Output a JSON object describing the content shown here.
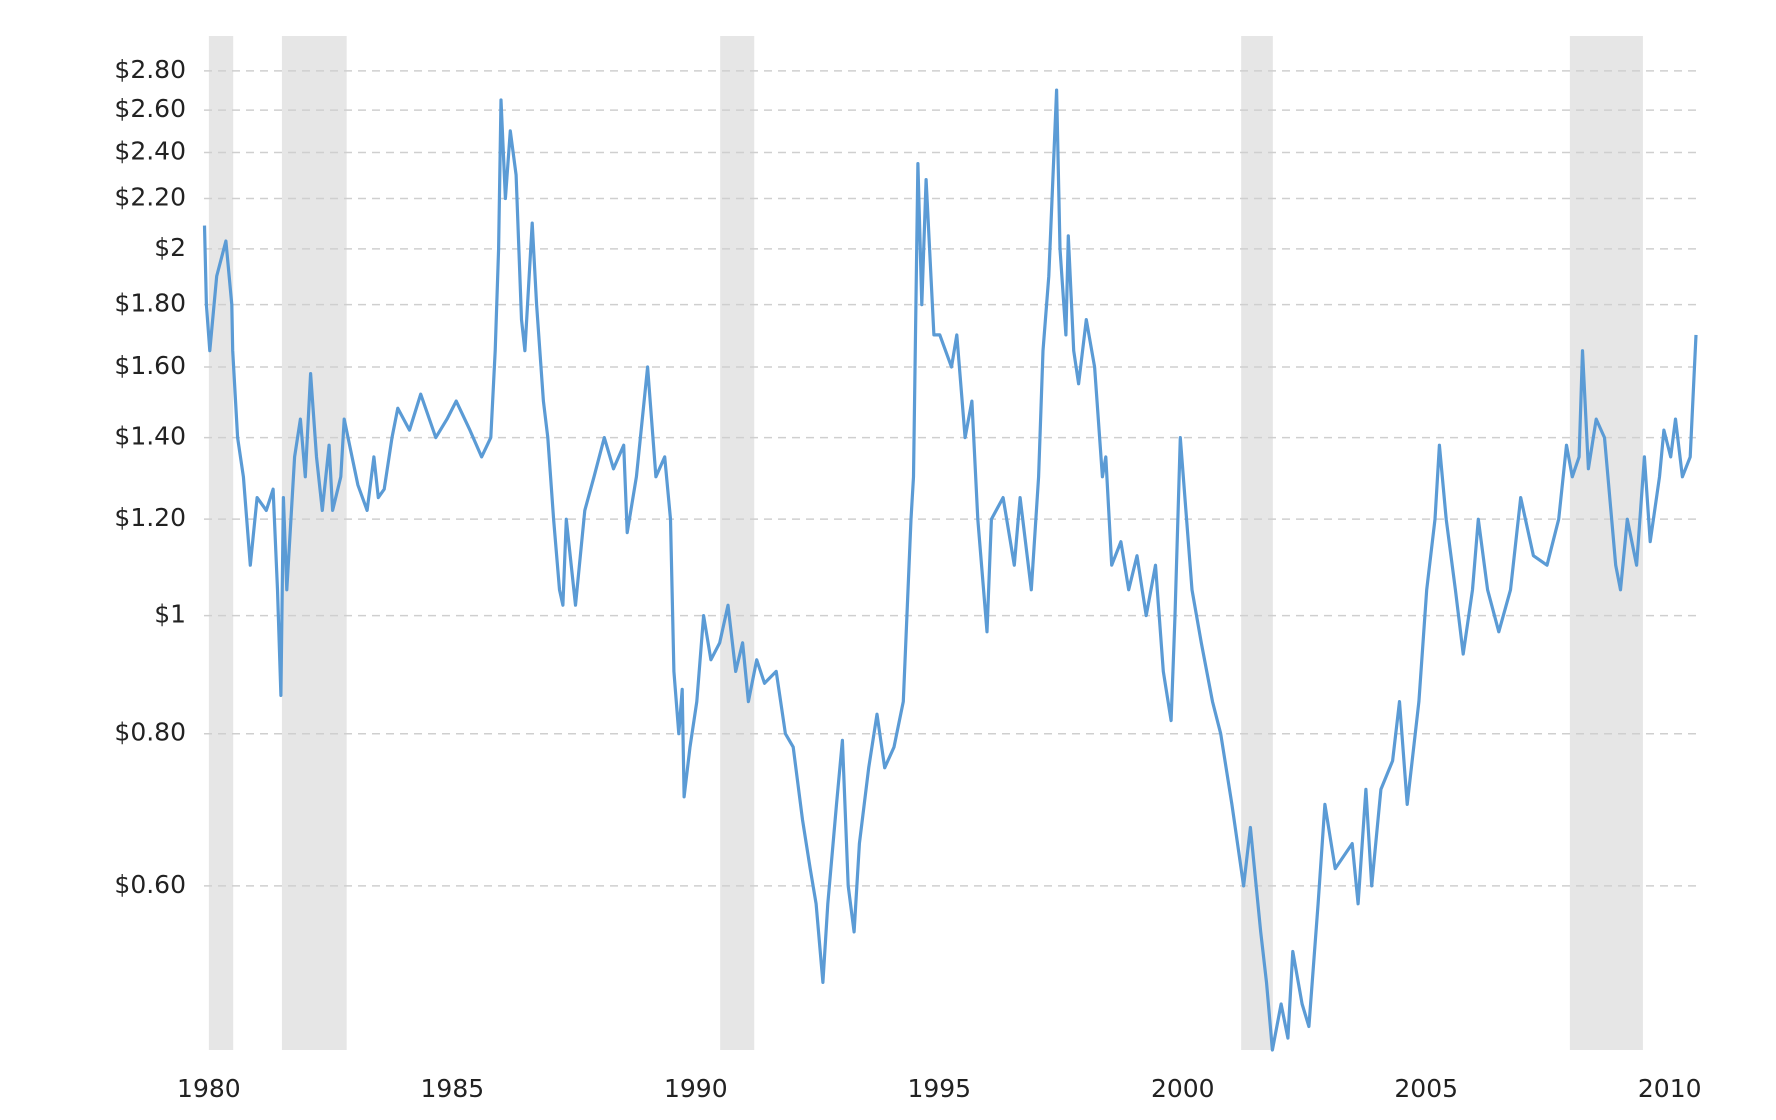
{
  "chart_data": {
    "type": "line",
    "log_scale": true,
    "grid": true,
    "xlim": [
      1979.9,
      2010.54
    ],
    "xticks": [
      1980,
      1985,
      1990,
      1995,
      2000,
      2005,
      2010
    ],
    "ylim": [
      0.44,
      2.88
    ],
    "yticks": [
      {
        "value": 0.6,
        "label": "$0.60"
      },
      {
        "value": 0.8,
        "label": "$0.80"
      },
      {
        "value": 1,
        "label": "$1"
      },
      {
        "value": 1.2,
        "label": "$1.20"
      },
      {
        "value": 1.4,
        "label": "$1.40"
      },
      {
        "value": 1.6,
        "label": "$1.60"
      },
      {
        "value": 1.8,
        "label": "$1.80"
      },
      {
        "value": 2,
        "label": "$2"
      },
      {
        "value": 2.2,
        "label": "$2.20"
      },
      {
        "value": 2.4,
        "label": "$2.40"
      },
      {
        "value": 2.6,
        "label": "$2.60"
      },
      {
        "value": 2.8,
        "label": "$2.80"
      }
    ],
    "recession_color": "#e6e6e6",
    "recessions": [
      [
        1980.0,
        1980.5
      ],
      [
        1981.5,
        1982.83
      ],
      [
        1990.5,
        1991.2
      ],
      [
        2001.2,
        2001.85
      ],
      [
        2007.95,
        2009.45
      ]
    ],
    "x": [
      1979.91,
      1979.95,
      1980.02,
      1980.16,
      1980.35,
      1980.47,
      1980.49,
      1980.59,
      1980.71,
      1980.85,
      1980.99,
      1981.18,
      1981.32,
      1981.41,
      1981.48,
      1981.53,
      1981.6,
      1981.76,
      1981.88,
      1981.98,
      1982.09,
      1982.21,
      1982.33,
      1982.47,
      1982.54,
      1982.71,
      1982.78,
      1982.89,
      1983.06,
      1983.25,
      1983.39,
      1983.48,
      1983.6,
      1983.76,
      1983.88,
      1984.12,
      1984.35,
      1984.66,
      1984.89,
      1985.08,
      1985.36,
      1985.6,
      1985.79,
      1985.88,
      1985.95,
      1986.0,
      1986.09,
      1986.19,
      1986.31,
      1986.42,
      1986.49,
      1986.64,
      1986.73,
      1986.87,
      1986.96,
      1987.08,
      1987.2,
      1987.27,
      1987.34,
      1987.53,
      1987.72,
      1987.91,
      1988.12,
      1988.31,
      1988.52,
      1988.59,
      1988.78,
      1989.01,
      1989.18,
      1989.36,
      1989.48,
      1989.55,
      1989.65,
      1989.72,
      1989.76,
      1989.88,
      1990.02,
      1990.16,
      1990.31,
      1990.49,
      1990.66,
      1990.82,
      1990.96,
      1991.08,
      1991.25,
      1991.41,
      1991.65,
      1991.84,
      1992.0,
      1992.19,
      1992.35,
      1992.47,
      1992.61,
      1992.71,
      1992.89,
      1993.01,
      1993.13,
      1993.25,
      1993.36,
      1993.55,
      1993.72,
      1993.88,
      1994.07,
      1994.26,
      1994.42,
      1994.47,
      1994.56,
      1994.64,
      1994.73,
      1994.89,
      1995.01,
      1995.25,
      1995.36,
      1995.53,
      1995.67,
      1995.79,
      1995.98,
      1996.07,
      1996.31,
      1996.54,
      1996.66,
      1996.89,
      1997.04,
      1997.13,
      1997.25,
      1997.41,
      1997.48,
      1997.6,
      1997.65,
      1997.76,
      1997.86,
      1998.02,
      1998.19,
      1998.35,
      1998.42,
      1998.54,
      1998.73,
      1998.89,
      1999.06,
      1999.25,
      1999.44,
      1999.6,
      1999.76,
      1999.84,
      1999.95,
      2000.19,
      2000.38,
      2000.61,
      2000.78,
      2001.01,
      2001.25,
      2001.39,
      2001.6,
      2001.72,
      2001.84,
      2002.02,
      2002.16,
      2002.26,
      2002.45,
      2002.59,
      2002.78,
      2002.92,
      2003.13,
      2003.48,
      2003.6,
      2003.76,
      2003.88,
      2004.07,
      2004.31,
      2004.45,
      2004.61,
      2004.85,
      2005.01,
      2005.18,
      2005.27,
      2005.41,
      2005.6,
      2005.76,
      2005.95,
      2006.07,
      2006.26,
      2006.49,
      2006.73,
      2006.94,
      2007.2,
      2007.48,
      2007.72,
      2007.88,
      2008.0,
      2008.14,
      2008.21,
      2008.33,
      2008.49,
      2008.66,
      2008.89,
      2008.99,
      2009.13,
      2009.32,
      2009.48,
      2009.6,
      2009.79,
      2009.88,
      2010.02,
      2010.12,
      2010.26,
      2010.42,
      2010.54
    ],
    "series": [
      {
        "color": "#5b9bd5",
        "values": [
          2.09,
          1.8,
          1.65,
          1.9,
          2.03,
          1.8,
          1.65,
          1.4,
          1.3,
          1.1,
          1.25,
          1.22,
          1.27,
          1.05,
          0.86,
          1.25,
          1.05,
          1.35,
          1.45,
          1.3,
          1.58,
          1.35,
          1.22,
          1.38,
          1.22,
          1.3,
          1.45,
          1.38,
          1.28,
          1.22,
          1.35,
          1.25,
          1.27,
          1.4,
          1.48,
          1.42,
          1.52,
          1.4,
          1.45,
          1.5,
          1.42,
          1.35,
          1.4,
          1.65,
          2.0,
          2.65,
          2.2,
          2.5,
          2.3,
          1.75,
          1.65,
          2.1,
          1.8,
          1.5,
          1.4,
          1.2,
          1.05,
          1.02,
          1.2,
          1.02,
          1.22,
          1.3,
          1.4,
          1.32,
          1.38,
          1.17,
          1.3,
          1.6,
          1.3,
          1.35,
          1.2,
          0.9,
          0.8,
          0.87,
          0.71,
          0.78,
          0.85,
          1.0,
          0.92,
          0.95,
          1.02,
          0.9,
          0.95,
          0.85,
          0.92,
          0.88,
          0.9,
          0.8,
          0.78,
          0.68,
          0.62,
          0.58,
          0.5,
          0.58,
          0.7,
          0.79,
          0.6,
          0.55,
          0.65,
          0.75,
          0.83,
          0.75,
          0.78,
          0.85,
          1.2,
          1.3,
          2.35,
          1.8,
          2.28,
          1.7,
          1.7,
          1.6,
          1.7,
          1.4,
          1.5,
          1.2,
          0.97,
          1.2,
          1.25,
          1.1,
          1.25,
          1.05,
          1.3,
          1.65,
          1.9,
          2.7,
          2.0,
          1.7,
          2.05,
          1.65,
          1.55,
          1.75,
          1.6,
          1.3,
          1.35,
          1.1,
          1.15,
          1.05,
          1.12,
          1.0,
          1.1,
          0.9,
          0.82,
          1.0,
          1.4,
          1.05,
          0.95,
          0.85,
          0.8,
          0.7,
          0.6,
          0.67,
          0.55,
          0.5,
          0.44,
          0.48,
          0.45,
          0.53,
          0.48,
          0.46,
          0.58,
          0.7,
          0.62,
          0.65,
          0.58,
          0.72,
          0.6,
          0.72,
          0.76,
          0.85,
          0.7,
          0.85,
          1.05,
          1.2,
          1.38,
          1.2,
          1.05,
          0.93,
          1.05,
          1.2,
          1.05,
          0.97,
          1.05,
          1.25,
          1.12,
          1.1,
          1.2,
          1.38,
          1.3,
          1.35,
          1.65,
          1.32,
          1.45,
          1.4,
          1.1,
          1.05,
          1.2,
          1.1,
          1.35,
          1.15,
          1.3,
          1.42,
          1.35,
          1.45,
          1.3,
          1.35,
          1.7
        ]
      }
    ]
  }
}
